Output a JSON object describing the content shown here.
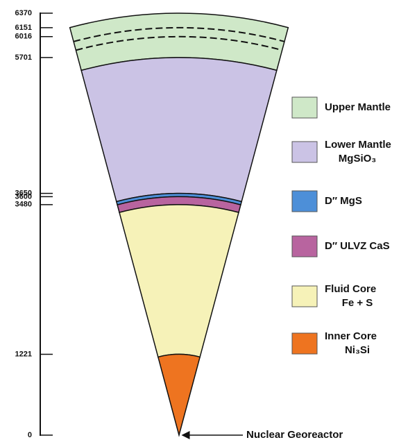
{
  "axis": {
    "range": [
      0,
      6370
    ],
    "ticks": [
      6370,
      6151,
      6016,
      5701,
      3650,
      3600,
      3480,
      1221,
      0
    ]
  },
  "layers": [
    {
      "from": 5701,
      "to": 6370,
      "color": "#cfe8c8"
    },
    {
      "from": 3650,
      "to": 5701,
      "color": "#cbc3e5"
    },
    {
      "from": 3600,
      "to": 3650,
      "color": "#4d8fd8"
    },
    {
      "from": 3480,
      "to": 3600,
      "color": "#b8649f"
    },
    {
      "from": 1221,
      "to": 3480,
      "color": "#f6f2b8"
    },
    {
      "from": 0,
      "to": 1221,
      "color": "#ee7420"
    }
  ],
  "dashed": [
    6151,
    6016
  ],
  "legend": [
    {
      "lines": [
        "Upper Mantle"
      ]
    },
    {
      "lines": [
        "Lower Mantle",
        "MgSiO₃"
      ]
    },
    {
      "lines": [
        "D″  MgS"
      ]
    },
    {
      "lines": [
        "D″ ULVZ CaS"
      ]
    },
    {
      "lines": [
        "Fluid Core",
        "Fe + S"
      ]
    },
    {
      "lines": [
        "Inner Core",
        "Ni₃Si"
      ]
    }
  ],
  "annotation": "Nuclear Georeactor"
}
